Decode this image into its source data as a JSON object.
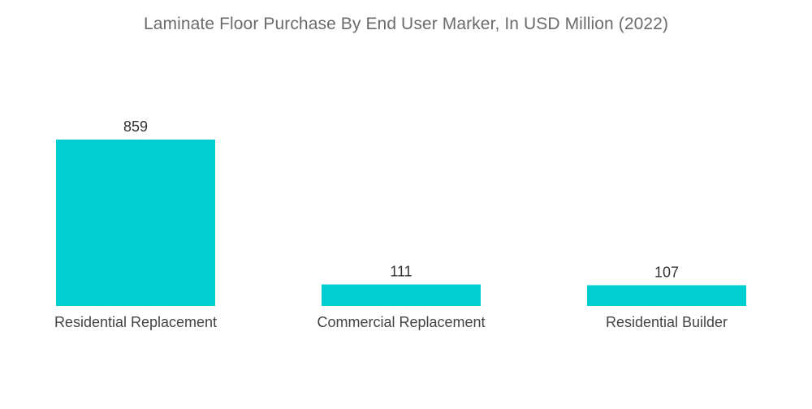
{
  "chart_data": {
    "type": "bar",
    "title": "Laminate Floor Purchase By End User Marker, In USD Million (2022)",
    "categories": [
      "Residential Replacement",
      "Commercial Replacement",
      "Residential Builder"
    ],
    "values": [
      859,
      111,
      107
    ],
    "data_labels": [
      "859",
      "111",
      "107"
    ],
    "xlabel": "",
    "ylabel": "",
    "ylim": [
      0,
      859
    ],
    "grid": false,
    "legend": "none",
    "bar_color": "#00ced1"
  }
}
